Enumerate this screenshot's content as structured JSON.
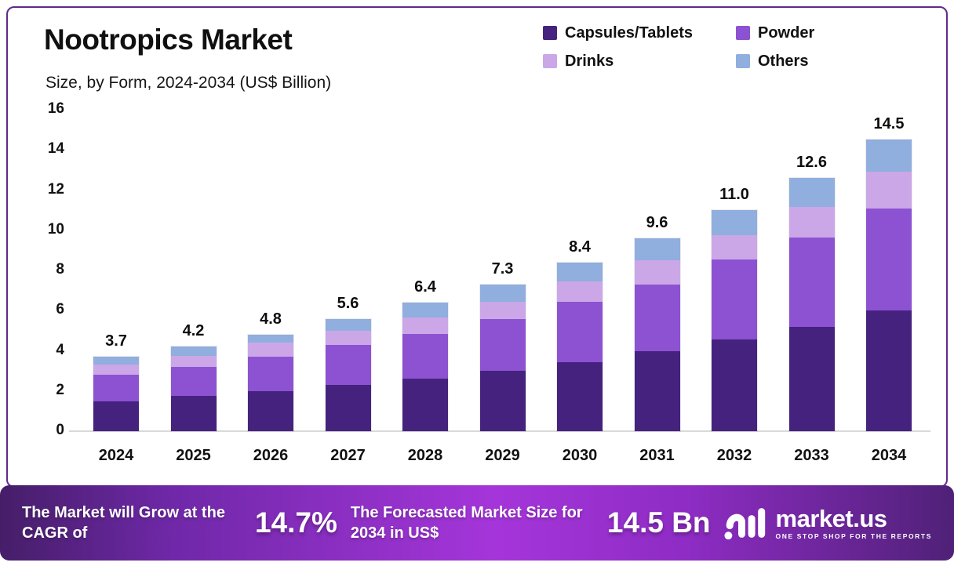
{
  "header": {
    "title": "Nootropics Market",
    "subtitle": "Size, by Form, 2024-2034 (US$ Billion)"
  },
  "legend": [
    {
      "label": "Capsules/Tablets",
      "color": "#46227f"
    },
    {
      "label": "Powder",
      "color": "#8c52d2"
    },
    {
      "label": "Drinks",
      "color": "#cba7e8"
    },
    {
      "label": "Others",
      "color": "#90aede"
    }
  ],
  "chart_data": {
    "type": "bar",
    "stacked": true,
    "title": "Nootropics Market",
    "subtitle": "Size, by Form, 2024-2034 (US$ Billion)",
    "xlabel": "",
    "ylabel": "US$ Billion",
    "ylim": [
      0,
      16
    ],
    "yticks": [
      0,
      2,
      4,
      6,
      8,
      10,
      12,
      14,
      16
    ],
    "grid": false,
    "legend_position": "top-right",
    "categories": [
      "2024",
      "2025",
      "2026",
      "2027",
      "2028",
      "2029",
      "2030",
      "2031",
      "2032",
      "2033",
      "2034"
    ],
    "series": [
      {
        "name": "Capsules/Tablets",
        "color": "#46227f",
        "values": [
          1.5,
          1.75,
          2.0,
          2.3,
          2.6,
          3.0,
          3.45,
          4.0,
          4.55,
          5.2,
          6.0
        ]
      },
      {
        "name": "Powder",
        "color": "#8c52d2",
        "values": [
          1.3,
          1.45,
          1.7,
          2.0,
          2.25,
          2.6,
          3.0,
          3.3,
          4.0,
          4.45,
          5.1
        ]
      },
      {
        "name": "Drinks",
        "color": "#cba7e8",
        "values": [
          0.5,
          0.55,
          0.7,
          0.7,
          0.8,
          0.85,
          1.0,
          1.2,
          1.2,
          1.5,
          1.8
        ]
      },
      {
        "name": "Others",
        "color": "#90aede",
        "values": [
          0.4,
          0.45,
          0.4,
          0.6,
          0.75,
          0.85,
          0.95,
          1.1,
          1.25,
          1.45,
          1.6
        ]
      }
    ],
    "totals": [
      "3.7",
      "4.2",
      "4.8",
      "5.6",
      "6.4",
      "7.3",
      "8.4",
      "9.6",
      "11.0",
      "12.6",
      "14.5"
    ]
  },
  "banner": {
    "cagr_label": "The Market will Grow at the CAGR of",
    "cagr_value": "14.7%",
    "forecast_label": "The Forecasted Market Size for 2034 in US$",
    "forecast_value": "14.5 Bn",
    "logo_text": "market.us",
    "logo_tagline": "ONE STOP SHOP FOR THE REPORTS"
  },
  "colors": {
    "card_border": "#5e2b8c",
    "axis_line": "#d9d9d9",
    "text": "#111111",
    "banner_gradient_left": "#451e68",
    "banner_gradient_mid": "#a535da",
    "banner_gradient_right": "#4f2177"
  }
}
